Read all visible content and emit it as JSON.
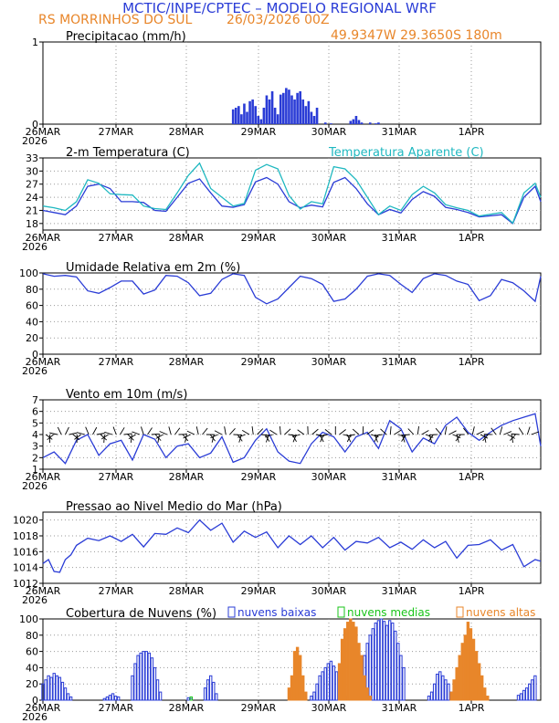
{
  "header": {
    "line1": "MCTIC/INPE/CPTEC – MODELO REGIONAL WRF",
    "station": "RS MORRINHOS DO SUL",
    "run": "26/03/2026 00Z",
    "coords": "49.9347W 29.3650S 180m"
  },
  "colors": {
    "blue": "#2a3cd6",
    "cyan": "#1fb8c0",
    "orange": "#e8862a",
    "green": "#18c418",
    "black": "#000000"
  },
  "chart_data": [
    {
      "id": "precip",
      "type": "bar",
      "title": "Precipitacao (mm/h)",
      "ylim": [
        0,
        1
      ],
      "yticks": [
        "0",
        "1"
      ],
      "xticks": [
        "26MAR",
        "27MAR",
        "28MAR",
        "29MAR",
        "30MAR",
        "31MAR",
        "1APR"
      ],
      "year_label": "2026",
      "start_hour": 68,
      "values": [
        0.18,
        0.2,
        0.22,
        0.12,
        0.25,
        0.15,
        0.28,
        0.3,
        0.22,
        0.1,
        0.06,
        0.2,
        0.35,
        0.3,
        0.4,
        0.2,
        0.12,
        0.36,
        0.38,
        0.44,
        0.42,
        0.35,
        0.3,
        0.38,
        0.4,
        0.3,
        0.22,
        0.28,
        0.15,
        0.1,
        0.2,
        0,
        0,
        0.02,
        0,
        0.01,
        0,
        0,
        0,
        0,
        0,
        0,
        0.04,
        0.06,
        0.1,
        0.05,
        0.02,
        0,
        0,
        0.02,
        0,
        0.01,
        0.02
      ]
    },
    {
      "id": "temp",
      "type": "line",
      "title": "2-m Temperatura (C)",
      "legend_right": "Temperatura Aparente (C)",
      "ylim": [
        16.5,
        33
      ],
      "yticks": [
        "18",
        "21",
        "24",
        "27",
        "30",
        "33"
      ],
      "xticks": [
        "26MAR",
        "27MAR",
        "28MAR",
        "29MAR",
        "30MAR",
        "31MAR",
        "1APR"
      ],
      "year_label": "2026",
      "series": [
        {
          "name": "2-m Temperatura (C)",
          "color": "blue",
          "x": [
            0,
            4,
            8,
            12,
            16,
            20,
            24,
            28,
            32,
            36,
            40,
            44,
            48,
            52,
            56,
            60,
            64,
            68,
            72,
            76,
            80,
            84,
            88,
            92,
            96,
            100,
            104,
            108,
            112,
            116,
            120,
            124,
            128,
            132,
            136,
            140,
            144,
            148,
            152,
            156,
            164,
            168,
            172,
            176,
            178
          ],
          "y": [
            21,
            20.5,
            20,
            22,
            26.5,
            27,
            26,
            23,
            23,
            22.8,
            21,
            20.8,
            24,
            27.2,
            28.2,
            25,
            22,
            21.7,
            22.3,
            27.5,
            28.5,
            27,
            23,
            21.6,
            22.2,
            21.8,
            27.4,
            28.5,
            26,
            22.5,
            20,
            21.2,
            20.4,
            23.5,
            25.3,
            24.2,
            21.7,
            21.2,
            20.5,
            19.5,
            20,
            18,
            24,
            26.5,
            23
          ]
        },
        {
          "name": "Temperatura Aparente (C)",
          "color": "cyan",
          "x": [
            0,
            4,
            8,
            12,
            16,
            20,
            24,
            28,
            32,
            36,
            40,
            44,
            48,
            52,
            56,
            60,
            64,
            68,
            72,
            76,
            80,
            84,
            88,
            92,
            96,
            100,
            104,
            108,
            112,
            116,
            120,
            124,
            128,
            132,
            136,
            140,
            144,
            148,
            152,
            156,
            164,
            168,
            172,
            176,
            178
          ],
          "y": [
            22,
            21.6,
            21,
            23,
            28,
            27.2,
            24.8,
            24.6,
            24.5,
            22,
            21.4,
            21.2,
            25,
            29,
            31.8,
            26,
            24,
            22,
            22.6,
            30.2,
            31.5,
            30.5,
            24.4,
            21.3,
            23,
            22.5,
            31,
            30.5,
            28,
            24,
            20,
            22,
            21,
            24.6,
            26.5,
            25,
            22.3,
            21.6,
            21,
            19.7,
            20.5,
            18.1,
            25,
            27.2,
            24
          ]
        }
      ]
    },
    {
      "id": "rh",
      "type": "line",
      "title": "Umidade Relativa em 2m (%)",
      "ylim": [
        0,
        100
      ],
      "yticks": [
        "0",
        "20",
        "40",
        "60",
        "80",
        "100"
      ],
      "xticks": [
        "26MAR",
        "27MAR",
        "28MAR",
        "29MAR",
        "30MAR",
        "31MAR",
        "1APR"
      ],
      "year_label": "2026",
      "series": [
        {
          "name": "Umidade Relativa",
          "color": "blue",
          "x": [
            0,
            4,
            8,
            12,
            16,
            20,
            24,
            28,
            32,
            36,
            40,
            44,
            48,
            52,
            56,
            60,
            64,
            68,
            72,
            76,
            80,
            84,
            88,
            92,
            96,
            100,
            104,
            108,
            112,
            116,
            120,
            124,
            128,
            132,
            136,
            140,
            144,
            148,
            152,
            156,
            160,
            164,
            168,
            172,
            176,
            178
          ],
          "y": [
            99,
            96,
            97,
            95,
            78,
            75,
            82,
            90,
            90,
            74,
            79,
            97,
            96,
            88,
            72,
            75,
            92,
            99,
            97,
            70,
            62,
            68,
            82,
            96,
            93,
            86,
            65,
            68,
            80,
            96,
            99,
            97,
            86,
            76,
            93,
            99,
            97,
            90,
            86,
            66,
            72,
            92,
            88,
            78,
            65,
            96
          ]
        }
      ]
    },
    {
      "id": "wind",
      "type": "line",
      "title": "Vento em 10m (m/s)",
      "ylim": [
        1,
        7
      ],
      "yticks": [
        "1",
        "2",
        "3",
        "4",
        "5",
        "6",
        "7"
      ],
      "xticks": [
        "26MAR",
        "27MAR",
        "28MAR",
        "29MAR",
        "30MAR",
        "31MAR",
        "1APR"
      ],
      "year_label": "2026",
      "series": [
        {
          "name": "Vento",
          "color": "blue",
          "x": [
            0,
            4,
            8,
            12,
            16,
            20,
            24,
            28,
            32,
            36,
            40,
            44,
            48,
            52,
            56,
            60,
            64,
            68,
            72,
            76,
            80,
            84,
            88,
            92,
            96,
            100,
            104,
            108,
            112,
            116,
            120,
            124,
            128,
            132,
            136,
            140,
            144,
            148,
            152,
            156,
            160,
            164,
            168,
            172,
            176,
            178
          ],
          "y": [
            2,
            2.5,
            1.5,
            3.5,
            4,
            2.2,
            3.2,
            3.5,
            1.8,
            4,
            3.6,
            2,
            3,
            3.2,
            2,
            2.4,
            3.8,
            1.6,
            2,
            3.5,
            4.5,
            2.5,
            1.7,
            1.5,
            3.2,
            4.2,
            3.8,
            2.5,
            3.8,
            4.2,
            2.8,
            5.2,
            4.5,
            2.5,
            3.7,
            3.2,
            4.8,
            5.5,
            4.2,
            3.5,
            4.2,
            4.8,
            5.2,
            5.5,
            5.8,
            3
          ]
        }
      ]
    },
    {
      "id": "pmsl",
      "type": "line",
      "title": "Pressao ao Nivel Medio do Mar (hPa)",
      "ylim": [
        1012,
        1021
      ],
      "yticks": [
        "1012",
        "1014",
        "1016",
        "1018",
        "1020"
      ],
      "xticks": [
        "26MAR",
        "27MAR",
        "28MAR",
        "29MAR",
        "30MAR",
        "31MAR",
        "1APR"
      ],
      "year_label": "2026",
      "series": [
        {
          "name": "PNM",
          "color": "blue",
          "x": [
            0,
            2,
            4,
            6,
            8,
            10,
            12,
            16,
            20,
            24,
            28,
            32,
            36,
            40,
            44,
            48,
            52,
            56,
            60,
            64,
            68,
            72,
            76,
            80,
            84,
            88,
            92,
            96,
            100,
            104,
            108,
            112,
            116,
            120,
            124,
            128,
            132,
            136,
            140,
            144,
            148,
            152,
            156,
            160,
            164,
            168,
            172,
            176,
            178
          ],
          "y": [
            1014.5,
            1015,
            1013.5,
            1013.4,
            1015,
            1015.6,
            1016.8,
            1017.7,
            1017.4,
            1018,
            1017.3,
            1018.2,
            1016.6,
            1018.3,
            1018.2,
            1019,
            1018.4,
            1020,
            1018.7,
            1019.6,
            1017.2,
            1018.6,
            1017.8,
            1018.5,
            1016.5,
            1018,
            1016.9,
            1018,
            1016.5,
            1017.8,
            1016.2,
            1017.3,
            1017.1,
            1017.8,
            1016.5,
            1017.2,
            1016.3,
            1017.5,
            1016.5,
            1017.3,
            1015.2,
            1016.8,
            1016.9,
            1017.5,
            1016.2,
            1016.9,
            1014.1,
            1015,
            1014.8
          ]
        }
      ]
    },
    {
      "id": "clouds",
      "type": "bar",
      "title": "Cobertura de Nuvens (%)",
      "legend": [
        {
          "label": "nuvens baixas",
          "color": "blue"
        },
        {
          "label": "nuvens medias",
          "color": "green"
        },
        {
          "label": "nuvens altas",
          "color": "orange"
        }
      ],
      "ylim": [
        0,
        100
      ],
      "yticks": [
        "0",
        "20",
        "40",
        "60",
        "80",
        "100"
      ],
      "xticks": [
        "26MAR",
        "27MAR",
        "28MAR",
        "29MAR",
        "30MAR",
        "31MAR",
        "1APR"
      ],
      "year_label": "2026",
      "series": [
        {
          "name": "nuvens baixas",
          "color": "blue",
          "ranges": [
            {
              "start": 0,
              "values": [
                20,
                25,
                30,
                28,
                33,
                30,
                28,
                22,
                15,
                8,
                4
              ]
            },
            {
              "start": 22,
              "values": [
                2,
                4,
                6,
                8,
                5,
                4
              ]
            },
            {
              "start": 32,
              "values": [
                30,
                45,
                55,
                58,
                60,
                60,
                58,
                52,
                40,
                25,
                10
              ]
            },
            {
              "start": 52,
              "values": [
                3,
                2
              ]
            },
            {
              "start": 58,
              "values": [
                15,
                25,
                30,
                22,
                8
              ]
            },
            {
              "start": 96,
              "values": [
                5,
                10,
                20,
                30,
                35,
                40,
                45,
                48,
                42,
                35,
                20,
                10,
                5
              ]
            },
            {
              "start": 112,
              "values": [
                15,
                25,
                40,
                55,
                70,
                80,
                88,
                95,
                98,
                100,
                97,
                92,
                98,
                95,
                85,
                70,
                55,
                40
              ]
            },
            {
              "start": 138,
              "values": [
                5,
                10,
                20,
                32,
                35,
                30,
                25,
                20,
                10,
                5
              ]
            },
            {
              "start": 170,
              "values": [
                6,
                8,
                12,
                15,
                20,
                25,
                30
              ]
            }
          ]
        },
        {
          "name": "nuvens medias",
          "color": "green",
          "ranges": [
            {
              "start": 53,
              "values": [
                4
              ]
            }
          ]
        },
        {
          "name": "nuvens altas",
          "color": "orange",
          "ranges": [
            {
              "start": 88,
              "values": [
                15,
                30,
                60,
                65,
                55,
                30,
                10
              ]
            },
            {
              "start": 106,
              "values": [
                45,
                75,
                88,
                96,
                100,
                96,
                90,
                70,
                55,
                30,
                15,
                5
              ]
            },
            {
              "start": 146,
              "values": [
                10,
                25,
                40,
                55,
                70,
                80,
                96,
                88,
                75,
                60,
                45,
                30,
                15,
                5
              ]
            }
          ]
        }
      ]
    }
  ]
}
